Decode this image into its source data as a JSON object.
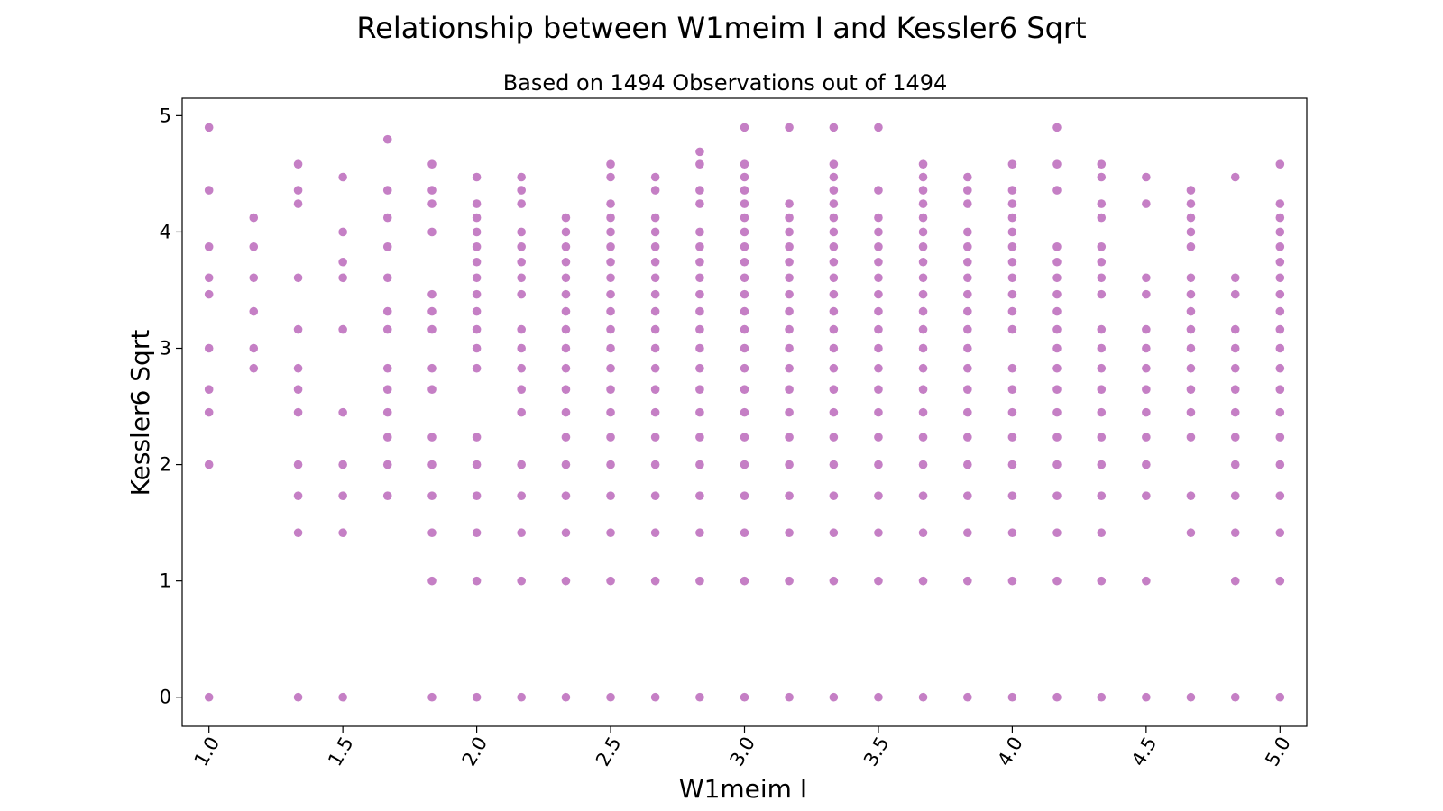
{
  "figure": {
    "title": "Relationship between W1meim I and Kessler6 Sqrt"
  },
  "chart_data": {
    "type": "scatter",
    "title": "Based on 1494 Observations out of 1494",
    "xlabel": "W1meim I",
    "ylabel": "Kessler6 Sqrt",
    "xlim": [
      0.9,
      5.1
    ],
    "ylim": [
      -0.25,
      5.15
    ],
    "x_ticks": [
      "1.0",
      "1.5",
      "2.0",
      "2.5",
      "3.0",
      "3.5",
      "4.0",
      "4.5",
      "5.0"
    ],
    "y_ticks": [
      "0",
      "1",
      "2",
      "3",
      "4",
      "5"
    ],
    "x_tick_rotation_deg": 60,
    "grid": false,
    "legend": "none",
    "marker_color": "#8B008B",
    "marker_opacity": 0.5,
    "points_by_x": [
      {
        "x": 1.0,
        "y": [
          0,
          2,
          2.449,
          2.646,
          3,
          3.464,
          3.606,
          3.873,
          4.359,
          4.899
        ]
      },
      {
        "x": 1.167,
        "y": [
          2.828,
          3,
          3.317,
          3.606,
          3.873,
          4.123
        ]
      },
      {
        "x": 1.333,
        "y": [
          0,
          1.414,
          1.732,
          2,
          2.449,
          2.646,
          2.828,
          3.162,
          3.606,
          4.243,
          4.359,
          4.583
        ]
      },
      {
        "x": 1.5,
        "y": [
          0,
          1.414,
          1.732,
          2,
          2.449,
          3.162,
          3.606,
          3.742,
          4,
          4.472
        ]
      },
      {
        "x": 1.667,
        "y": [
          1.732,
          2,
          2.236,
          2.449,
          2.646,
          2.828,
          3.162,
          3.317,
          3.606,
          3.873,
          4.123,
          4.359,
          4.796
        ]
      },
      {
        "x": 1.833,
        "y": [
          0,
          1,
          1.414,
          1.732,
          2,
          2.236,
          2.646,
          2.828,
          3.162,
          3.317,
          3.464,
          4,
          4.243,
          4.359,
          4.583
        ]
      },
      {
        "x": 2.0,
        "y": [
          0,
          1,
          1.414,
          1.732,
          2,
          2.236,
          2.828,
          3,
          3.162,
          3.317,
          3.464,
          3.606,
          3.742,
          3.873,
          4,
          4.123,
          4.243,
          4.472
        ]
      },
      {
        "x": 2.167,
        "y": [
          0,
          1,
          1.414,
          1.732,
          2,
          2.449,
          2.646,
          2.828,
          3,
          3.162,
          3.464,
          3.606,
          3.742,
          3.873,
          4,
          4.243,
          4.359,
          4.472
        ]
      },
      {
        "x": 2.333,
        "y": [
          0,
          1,
          1.414,
          1.732,
          2,
          2.236,
          2.449,
          2.646,
          2.828,
          3,
          3.162,
          3.317,
          3.464,
          3.606,
          3.742,
          3.873,
          4,
          4.123
        ]
      },
      {
        "x": 2.5,
        "y": [
          0,
          1,
          1.414,
          1.732,
          2,
          2.236,
          2.449,
          2.646,
          2.828,
          3,
          3.162,
          3.317,
          3.464,
          3.606,
          3.742,
          3.873,
          4,
          4.123,
          4.243,
          4.472,
          4.583
        ]
      },
      {
        "x": 2.667,
        "y": [
          0,
          1,
          1.414,
          1.732,
          2,
          2.236,
          2.449,
          2.646,
          2.828,
          3,
          3.162,
          3.317,
          3.464,
          3.606,
          3.742,
          3.873,
          4,
          4.123,
          4.359,
          4.472
        ]
      },
      {
        "x": 2.833,
        "y": [
          0,
          1,
          1.414,
          1.732,
          2,
          2.236,
          2.449,
          2.646,
          2.828,
          3,
          3.162,
          3.317,
          3.464,
          3.606,
          3.742,
          3.873,
          4,
          4.243,
          4.359,
          4.583,
          4.69
        ]
      },
      {
        "x": 3.0,
        "y": [
          0,
          1,
          1.414,
          1.732,
          2,
          2.236,
          2.449,
          2.646,
          2.828,
          3,
          3.162,
          3.317,
          3.464,
          3.606,
          3.742,
          3.873,
          4,
          4.123,
          4.243,
          4.359,
          4.472,
          4.583,
          4.899
        ]
      },
      {
        "x": 3.167,
        "y": [
          0,
          1,
          1.414,
          1.732,
          2,
          2.236,
          2.449,
          2.646,
          2.828,
          3,
          3.162,
          3.317,
          3.464,
          3.606,
          3.742,
          3.873,
          4,
          4.123,
          4.243,
          4.899
        ]
      },
      {
        "x": 3.333,
        "y": [
          0,
          1,
          1.414,
          1.732,
          2,
          2.236,
          2.449,
          2.646,
          2.828,
          3,
          3.162,
          3.317,
          3.464,
          3.606,
          3.742,
          3.873,
          4,
          4.123,
          4.243,
          4.359,
          4.472,
          4.583,
          4.899
        ]
      },
      {
        "x": 3.5,
        "y": [
          0,
          1,
          1.414,
          1.732,
          2,
          2.236,
          2.449,
          2.646,
          2.828,
          3,
          3.162,
          3.317,
          3.464,
          3.606,
          3.742,
          3.873,
          4,
          4.123,
          4.359,
          4.899
        ]
      },
      {
        "x": 3.667,
        "y": [
          0,
          1,
          1.414,
          1.732,
          2,
          2.236,
          2.449,
          2.646,
          2.828,
          3,
          3.162,
          3.317,
          3.464,
          3.606,
          3.742,
          3.873,
          4,
          4.123,
          4.243,
          4.359,
          4.472,
          4.583
        ]
      },
      {
        "x": 3.833,
        "y": [
          0,
          1,
          1.414,
          1.732,
          2,
          2.236,
          2.449,
          2.646,
          2.828,
          3,
          3.162,
          3.317,
          3.464,
          3.606,
          3.742,
          3.873,
          4,
          4.243,
          4.359,
          4.472
        ]
      },
      {
        "x": 4.0,
        "y": [
          0,
          1,
          1.414,
          1.732,
          2,
          2.236,
          2.449,
          2.646,
          2.828,
          3.162,
          3.317,
          3.464,
          3.606,
          3.742,
          3.873,
          4,
          4.123,
          4.243,
          4.359,
          4.583
        ]
      },
      {
        "x": 4.167,
        "y": [
          0,
          1,
          1.414,
          1.732,
          2,
          2.236,
          2.449,
          2.646,
          2.828,
          3,
          3.162,
          3.317,
          3.464,
          3.606,
          3.742,
          3.873,
          4.359,
          4.583,
          4.899
        ]
      },
      {
        "x": 4.333,
        "y": [
          0,
          1,
          1.414,
          1.732,
          2,
          2.236,
          2.449,
          2.646,
          2.828,
          3,
          3.162,
          3.464,
          3.606,
          3.742,
          3.873,
          4.123,
          4.243,
          4.472,
          4.583
        ]
      },
      {
        "x": 4.5,
        "y": [
          0,
          1,
          1.732,
          2,
          2.236,
          2.449,
          2.646,
          2.828,
          3,
          3.162,
          3.464,
          3.606,
          4.243,
          4.472
        ]
      },
      {
        "x": 4.667,
        "y": [
          0,
          1.414,
          1.732,
          2.236,
          2.449,
          2.646,
          2.828,
          3,
          3.162,
          3.317,
          3.464,
          3.606,
          3.873,
          4,
          4.123,
          4.243,
          4.359
        ]
      },
      {
        "x": 4.833,
        "y": [
          0,
          1,
          1.414,
          1.732,
          2,
          2.236,
          2.449,
          2.646,
          2.828,
          3,
          3.162,
          3.464,
          3.606,
          4.472
        ]
      },
      {
        "x": 5.0,
        "y": [
          0,
          1,
          1.414,
          1.732,
          2,
          2.236,
          2.449,
          2.646,
          2.828,
          3,
          3.162,
          3.317,
          3.464,
          3.606,
          3.742,
          3.873,
          4,
          4.123,
          4.243,
          4.583
        ]
      }
    ]
  }
}
